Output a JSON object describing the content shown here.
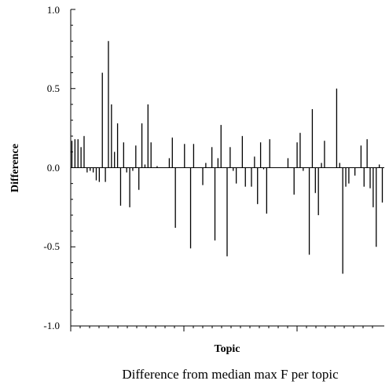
{
  "chart_data": {
    "type": "bar",
    "title": "",
    "caption": "Difference from median max F per topic",
    "xlabel": "Topic",
    "ylabel": "Difference",
    "ylim": [
      -1.0,
      1.0
    ],
    "y_tick_labels": [
      "1.0",
      "0.5",
      "0.0",
      "-0.5",
      "-1.0"
    ],
    "grid": false,
    "bar_color": "#000000",
    "series": [
      {
        "values": [
          0.17,
          0.18,
          0.18,
          0.13,
          0.2,
          -0.03,
          -0.02,
          -0.03,
          -0.08,
          -0.09,
          0.6,
          -0.09,
          0.8,
          0.4,
          0.1,
          0.28,
          -0.24,
          0.16,
          -0.03,
          -0.25,
          -0.02,
          0.14,
          -0.14,
          0.28,
          0.02,
          0.4,
          0.16,
          0.0,
          0.01,
          0.0,
          0.0,
          0.0,
          0.06,
          0.19,
          -0.38,
          0.0,
          0.0,
          0.15,
          0.0,
          -0.51,
          0.15,
          0.0,
          0.0,
          -0.11,
          0.03,
          0.0,
          0.13,
          -0.46,
          0.06,
          0.27,
          0.0,
          -0.56,
          0.13,
          -0.02,
          -0.1,
          0.0,
          0.2,
          -0.12,
          0.0,
          -0.12,
          0.07,
          -0.23,
          0.16,
          -0.01,
          -0.29,
          0.18,
          0.0,
          0.0,
          0.0,
          0.0,
          0.0,
          0.06,
          0.0,
          -0.17,
          0.16,
          0.22,
          -0.02,
          0.0,
          -0.55,
          0.37,
          -0.16,
          -0.3,
          0.03,
          0.17,
          0.0,
          0.0,
          0.0,
          0.5,
          0.03,
          -0.67,
          -0.12,
          -0.1,
          0.0,
          -0.05,
          0.0,
          0.14,
          -0.12,
          0.18,
          -0.13,
          -0.25,
          -0.5,
          0.02,
          -0.22
        ]
      }
    ]
  }
}
